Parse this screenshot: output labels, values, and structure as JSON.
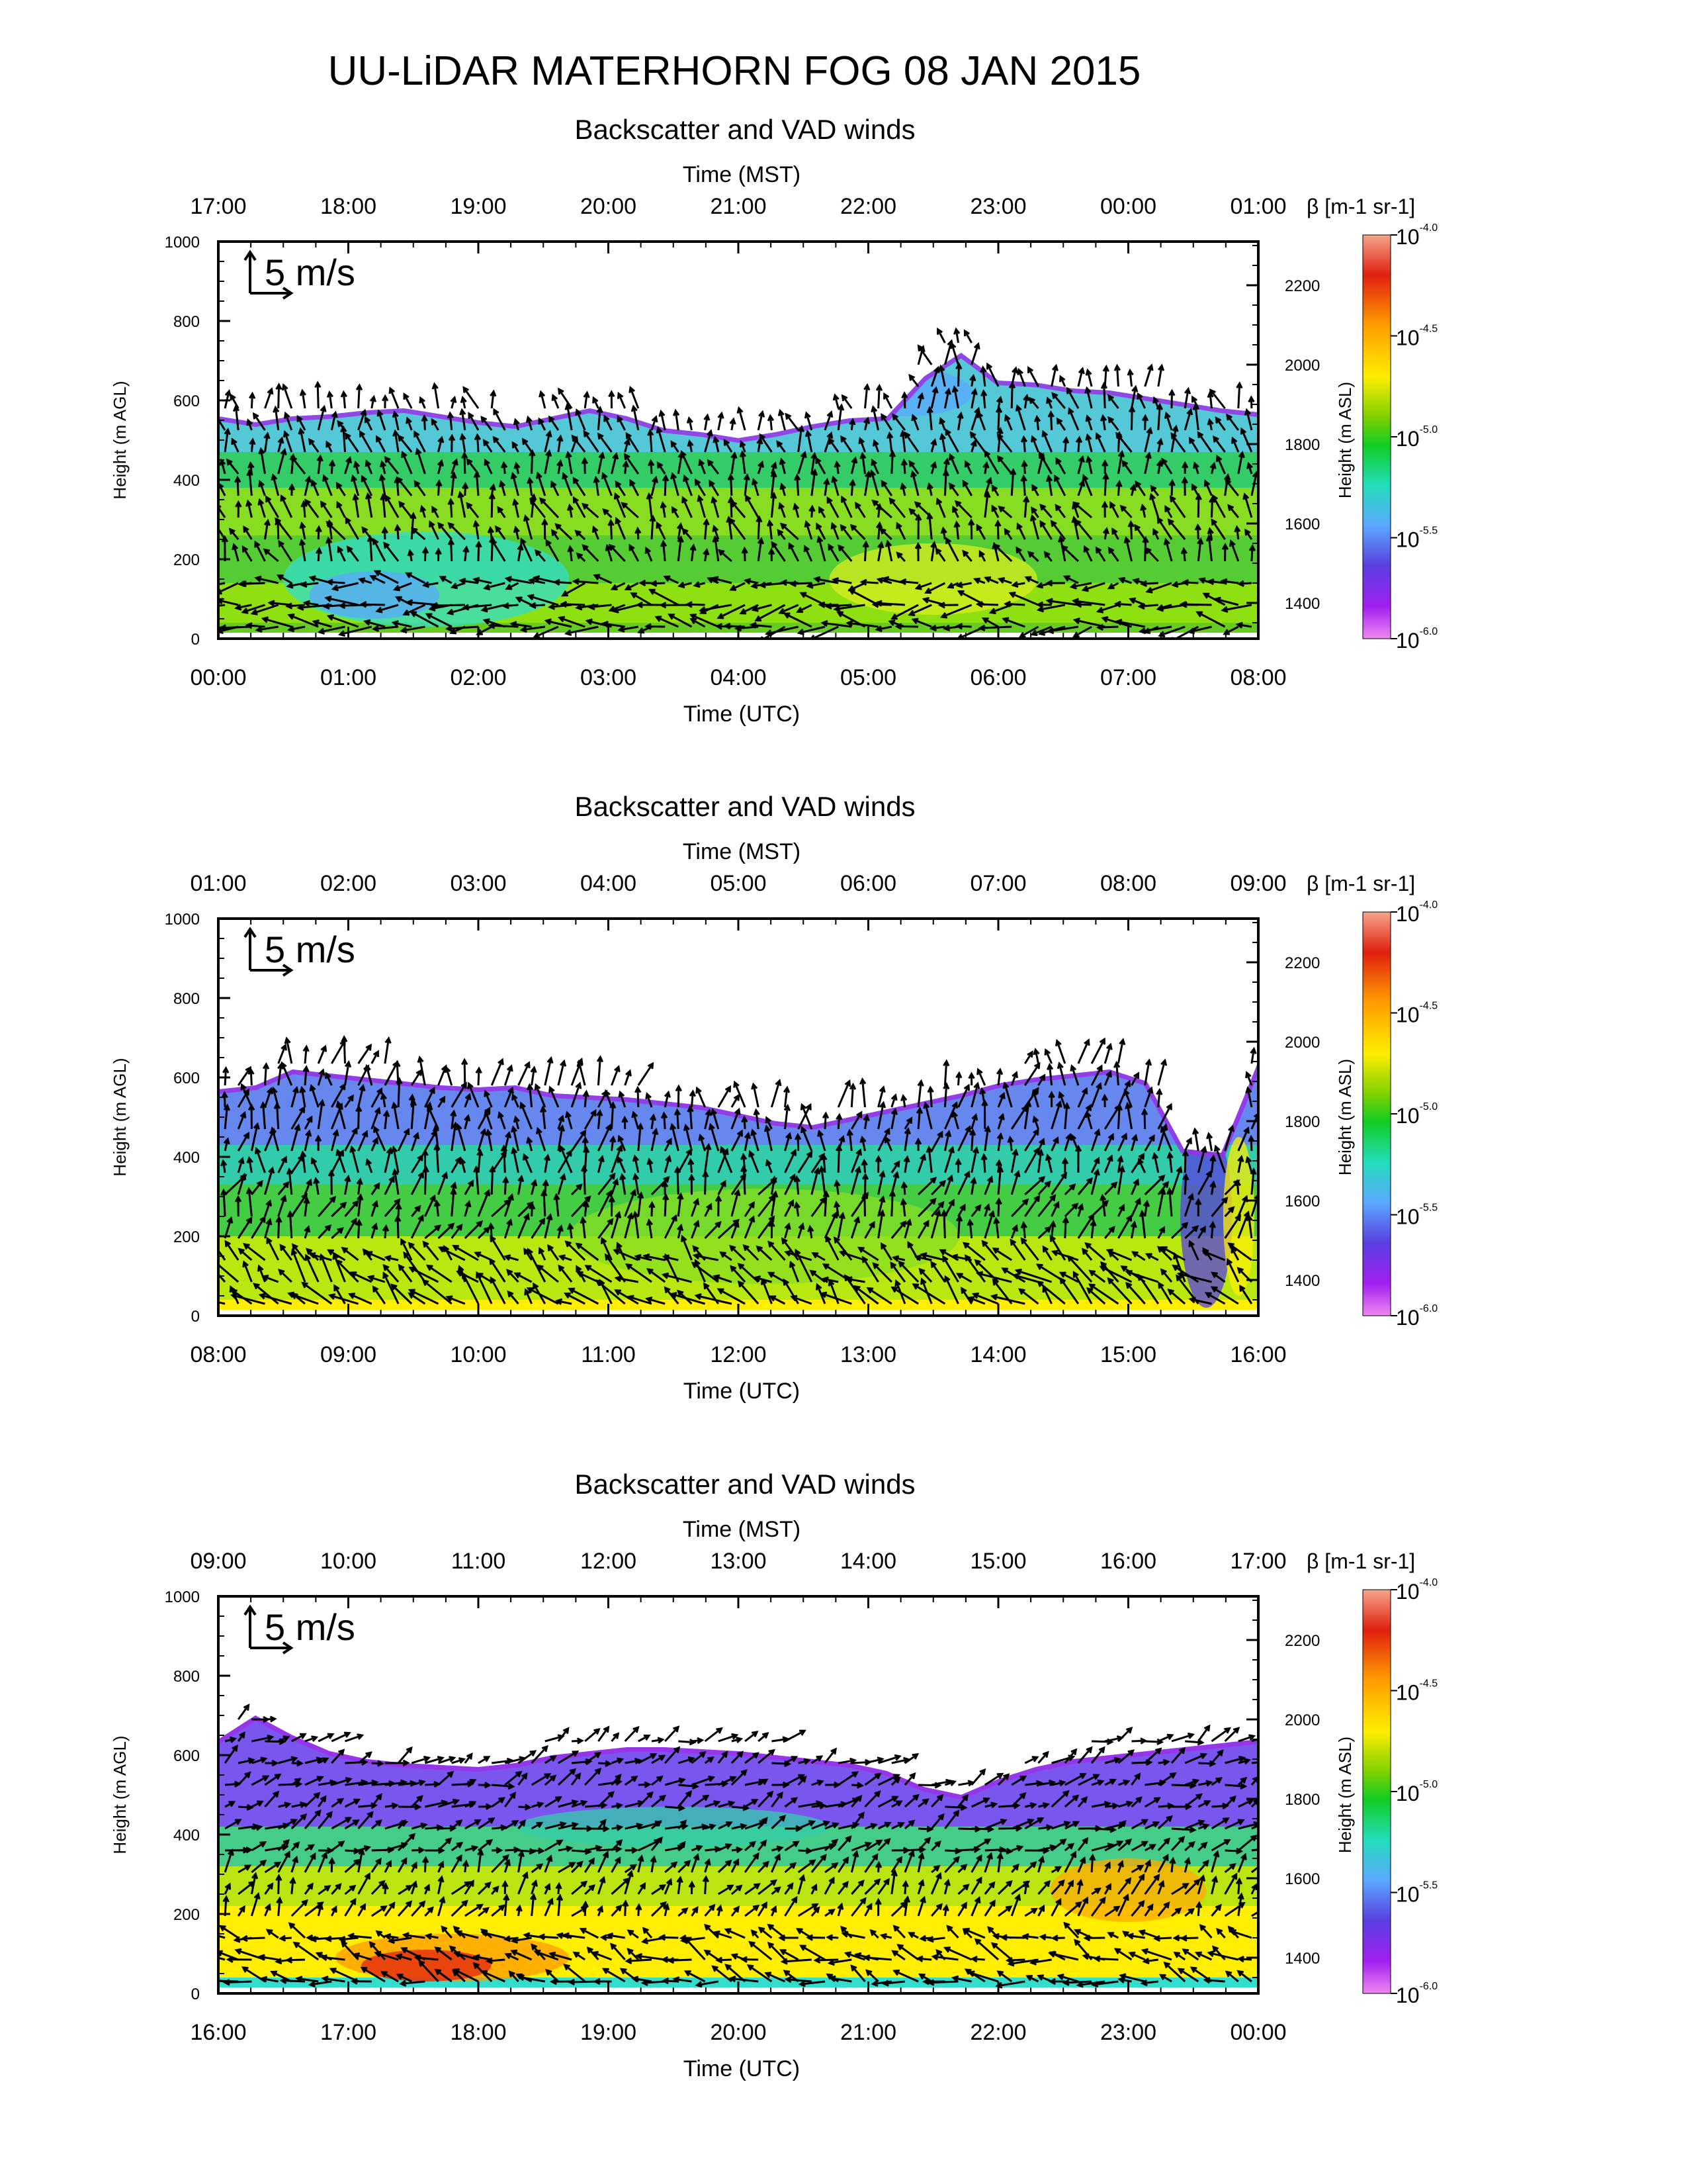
{
  "page_title": "UU-LiDAR MATERHORN FOG  08 JAN 2015",
  "colorbar": {
    "title": "β [m-1 sr-1]",
    "tick_labels": [
      "10-4.0",
      "10-4.5",
      "10-5.0",
      "10-5.5",
      "10-6.0"
    ],
    "colors": [
      "#f4a58a",
      "#e02010",
      "#ff9900",
      "#ffee00",
      "#7fd000",
      "#11cc22",
      "#22ddbb",
      "#5aa8ff",
      "#5a3fe0",
      "#a020f0",
      "#ee88f0"
    ]
  },
  "wind_scale": {
    "label": "5 m/s"
  },
  "chart_data": [
    {
      "type": "heatmap",
      "title": "Backscatter and VAD winds",
      "xlabel": "Time (UTC)",
      "x2label": "Time (MST)",
      "ylabel": "Height (m AGL)",
      "y2label": "Height (m ASL)",
      "utc_ticks": [
        "00:00",
        "01:00",
        "02:00",
        "03:00",
        "04:00",
        "05:00",
        "06:00",
        "07:00",
        "08:00"
      ],
      "mst_ticks": [
        "17:00",
        "18:00",
        "19:00",
        "20:00",
        "21:00",
        "22:00",
        "23:00",
        "00:00",
        "01:00"
      ],
      "ylim": [
        0,
        1000
      ],
      "y_ticks": [
        0,
        200,
        400,
        600,
        800,
        1000
      ],
      "y2_ticks": [
        1400,
        1600,
        1800,
        2000,
        2200
      ],
      "y2_offset": 1310,
      "layer_top_m": [
        560,
        545,
        560,
        565,
        575,
        580,
        565,
        550,
        540,
        560,
        580,
        560,
        530,
        520,
        505,
        520,
        540,
        555,
        560,
        660,
        720,
        650,
        645,
        630,
        625,
        610,
        595,
        580,
        570
      ],
      "bands": [
        {
          "z_low": 0,
          "z_high": 40,
          "color": "#66cc22"
        },
        {
          "z_low": 40,
          "z_high": 140,
          "color": "#8ee010"
        },
        {
          "z_low": 140,
          "z_high": 260,
          "color": "#55cc33"
        },
        {
          "z_low": 260,
          "z_high": 380,
          "color": "#88dd22"
        },
        {
          "z_low": 380,
          "z_high": 470,
          "color": "#33cc66"
        },
        {
          "z_low": 470,
          "z_high": 900,
          "color": "#55c8d8"
        }
      ],
      "blobs": [
        {
          "x_h": 1.6,
          "z": 150,
          "rx_h": 1.1,
          "rz": 120,
          "color": "#33ddcc"
        },
        {
          "x_h": 1.2,
          "z": 110,
          "rx_h": 0.5,
          "rz": 60,
          "color": "#5aa8ff"
        },
        {
          "x_h": 5.5,
          "z": 150,
          "rx_h": 0.8,
          "rz": 90,
          "color": "#d8ee20"
        },
        {
          "x_h": 5.3,
          "z": 620,
          "rx_h": 0.5,
          "rz": 60,
          "color": "#5aa8ff"
        }
      ],
      "wind_regime": {
        "low_dir": 270,
        "mid_dir": 200,
        "high_dir": 190,
        "speed_scale": 1.0
      }
    },
    {
      "type": "heatmap",
      "title": "Backscatter and VAD winds",
      "xlabel": "Time (UTC)",
      "x2label": "Time (MST)",
      "ylabel": "Height (m AGL)",
      "y2label": "Height (m ASL)",
      "utc_ticks": [
        "08:00",
        "09:00",
        "10:00",
        "11:00",
        "12:00",
        "13:00",
        "14:00",
        "15:00",
        "16:00"
      ],
      "mst_ticks": [
        "01:00",
        "02:00",
        "03:00",
        "04:00",
        "05:00",
        "06:00",
        "07:00",
        "08:00",
        "09:00"
      ],
      "ylim": [
        0,
        1000
      ],
      "y_ticks": [
        0,
        200,
        400,
        600,
        800,
        1000
      ],
      "y2_ticks": [
        1400,
        1600,
        1800,
        2000,
        2200
      ],
      "y2_offset": 1310,
      "layer_top_m": [
        570,
        580,
        620,
        610,
        600,
        590,
        580,
        575,
        580,
        560,
        555,
        550,
        540,
        530,
        510,
        490,
        480,
        500,
        520,
        540,
        560,
        585,
        600,
        610,
        620,
        590,
        420,
        410,
        640
      ],
      "bands": [
        {
          "z_low": 0,
          "z_high": 40,
          "color": "#ffee00"
        },
        {
          "z_low": 40,
          "z_high": 200,
          "color": "#b8e810"
        },
        {
          "z_low": 200,
          "z_high": 330,
          "color": "#44cc44"
        },
        {
          "z_low": 330,
          "z_high": 430,
          "color": "#33ccaa"
        },
        {
          "z_low": 430,
          "z_high": 900,
          "color": "#6688ee"
        }
      ],
      "blobs": [
        {
          "x_h": 4.2,
          "z": 200,
          "rx_h": 1.5,
          "rz": 120,
          "color": "#88dd22"
        },
        {
          "x_h": 7.6,
          "z": 250,
          "rx_h": 0.2,
          "rz": 230,
          "color": "#5a3fe0"
        },
        {
          "x_h": 7.85,
          "z": 250,
          "rx_h": 0.12,
          "rz": 200,
          "color": "#ffee00"
        }
      ],
      "wind_regime": {
        "low_dir": 230,
        "mid_dir": 160,
        "high_dir": 175,
        "speed_scale": 1.1
      }
    },
    {
      "type": "heatmap",
      "title": "Backscatter and VAD winds",
      "xlabel": "Time (UTC)",
      "x2label": "Time (MST)",
      "ylabel": "Height (m AGL)",
      "y2label": "Height (m ASL)",
      "utc_ticks": [
        "16:00",
        "17:00",
        "18:00",
        "19:00",
        "20:00",
        "21:00",
        "22:00",
        "23:00",
        "00:00"
      ],
      "mst_ticks": [
        "09:00",
        "10:00",
        "11:00",
        "12:00",
        "13:00",
        "14:00",
        "15:00",
        "16:00",
        "17:00"
      ],
      "ylim": [
        0,
        1000
      ],
      "y_ticks": [
        0,
        200,
        400,
        600,
        800,
        1000
      ],
      "y2_ticks": [
        1400,
        1600,
        1800,
        2000,
        2200
      ],
      "y2_offset": 1310,
      "layer_top_m": [
        640,
        700,
        650,
        610,
        590,
        580,
        575,
        570,
        580,
        600,
        610,
        620,
        620,
        615,
        610,
        600,
        590,
        580,
        560,
        520,
        500,
        540,
        570,
        590,
        600,
        610,
        620,
        630,
        640
      ],
      "bands": [
        {
          "z_low": 0,
          "z_high": 40,
          "color": "#33ddcc"
        },
        {
          "z_low": 40,
          "z_high": 220,
          "color": "#ffee00"
        },
        {
          "z_low": 220,
          "z_high": 320,
          "color": "#bbe510"
        },
        {
          "z_low": 320,
          "z_high": 420,
          "color": "#44cc88"
        },
        {
          "z_low": 420,
          "z_high": 900,
          "color": "#7a55ee"
        }
      ],
      "blobs": [
        {
          "x_h": 1.8,
          "z": 90,
          "rx_h": 0.9,
          "rz": 60,
          "color": "#ff9900"
        },
        {
          "x_h": 1.6,
          "z": 70,
          "rx_h": 0.5,
          "rz": 40,
          "color": "#e02010"
        },
        {
          "x_h": 7.0,
          "z": 260,
          "rx_h": 0.6,
          "rz": 80,
          "color": "#ffaa00"
        },
        {
          "x_h": 3.5,
          "z": 420,
          "rx_h": 1.2,
          "rz": 50,
          "color": "#33ccaa"
        }
      ],
      "wind_regime": {
        "low_dir": 250,
        "mid_dir": 150,
        "high_dir": 115,
        "speed_scale": 0.9
      }
    }
  ]
}
